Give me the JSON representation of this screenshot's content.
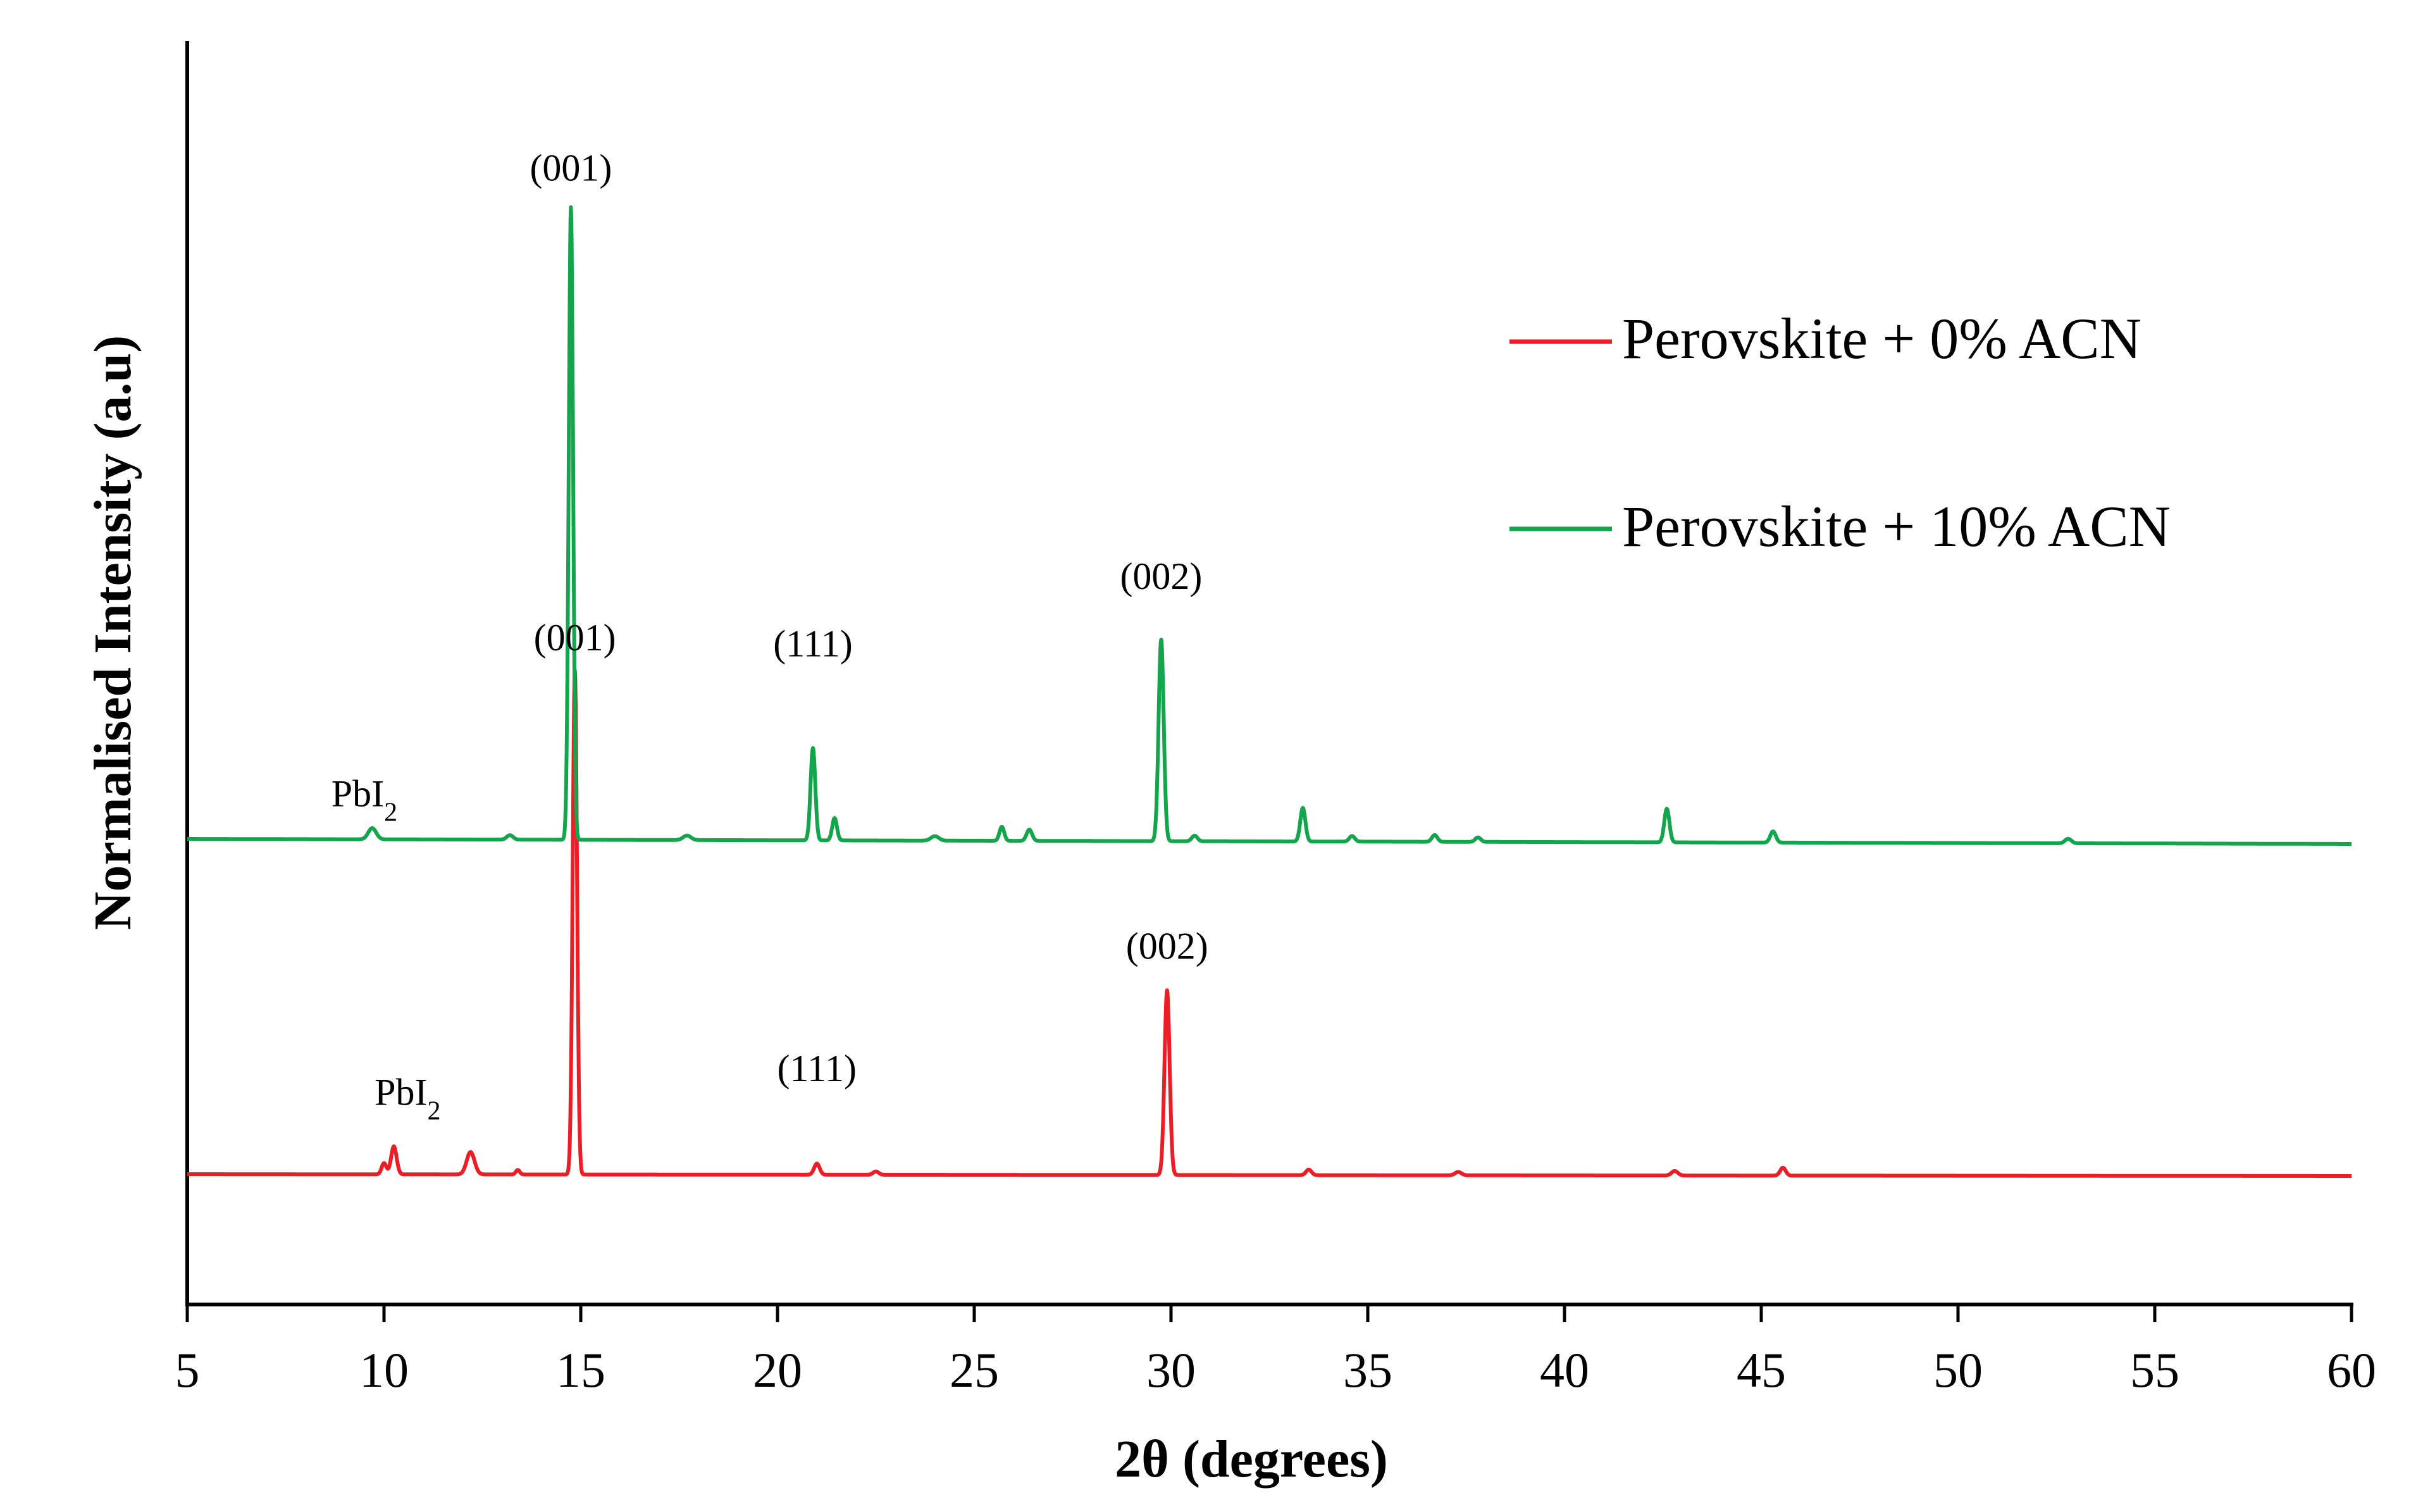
{
  "chart_data": {
    "type": "line",
    "title": "",
    "xlabel": "2θ (degrees)",
    "ylabel": "Normalised Intensity (a.u)",
    "xlim": [
      5,
      60
    ],
    "xticks": [
      "5",
      "10",
      "15",
      "20",
      "25",
      "30",
      "35",
      "40",
      "45",
      "50",
      "55",
      "60"
    ],
    "yticks": [],
    "grid": false,
    "legend_position": "top-right",
    "series": [
      {
        "name": "Perovskite + 0% ACN",
        "color": "#ee1c25",
        "baseline": 0.0,
        "peaks": [
          {
            "x": 10.0,
            "height": 0.02,
            "width": 0.06
          },
          {
            "x": 10.25,
            "height": 0.05,
            "width": 0.07
          },
          {
            "x": 12.2,
            "height": 0.04,
            "width": 0.1
          },
          {
            "x": 13.4,
            "height": 0.008,
            "width": 0.05
          },
          {
            "x": 14.85,
            "height": 0.9,
            "width": 0.055
          },
          {
            "x": 21.0,
            "height": 0.02,
            "width": 0.07
          },
          {
            "x": 22.5,
            "height": 0.006,
            "width": 0.07
          },
          {
            "x": 29.9,
            "height": 0.33,
            "width": 0.065
          },
          {
            "x": 33.5,
            "height": 0.01,
            "width": 0.07
          },
          {
            "x": 37.3,
            "height": 0.006,
            "width": 0.08
          },
          {
            "x": 42.8,
            "height": 0.008,
            "width": 0.08
          },
          {
            "x": 45.55,
            "height": 0.014,
            "width": 0.07
          }
        ],
        "annotations": [
          {
            "x": 10.6,
            "label": "PbI2"
          },
          {
            "x": 14.85,
            "label": "(001)"
          },
          {
            "x": 21.0,
            "label": "(111)"
          },
          {
            "x": 29.9,
            "label": "(002)"
          }
        ]
      },
      {
        "name": "Perovskite + 10% ACN",
        "color": "#12a54c",
        "baseline": 1.0,
        "peaks": [
          {
            "x": 9.7,
            "height": 0.02,
            "width": 0.1
          },
          {
            "x": 13.2,
            "height": 0.008,
            "width": 0.08
          },
          {
            "x": 14.75,
            "height": 1.13,
            "width": 0.055
          },
          {
            "x": 17.7,
            "height": 0.008,
            "width": 0.1
          },
          {
            "x": 20.9,
            "height": 0.165,
            "width": 0.06
          },
          {
            "x": 21.45,
            "height": 0.04,
            "width": 0.06
          },
          {
            "x": 24.0,
            "height": 0.008,
            "width": 0.1
          },
          {
            "x": 25.7,
            "height": 0.025,
            "width": 0.06
          },
          {
            "x": 26.4,
            "height": 0.02,
            "width": 0.07
          },
          {
            "x": 29.75,
            "height": 0.36,
            "width": 0.065
          },
          {
            "x": 30.6,
            "height": 0.01,
            "width": 0.07
          },
          {
            "x": 33.35,
            "height": 0.06,
            "width": 0.065
          },
          {
            "x": 34.6,
            "height": 0.01,
            "width": 0.07
          },
          {
            "x": 36.7,
            "height": 0.012,
            "width": 0.07
          },
          {
            "x": 37.8,
            "height": 0.008,
            "width": 0.07
          },
          {
            "x": 42.6,
            "height": 0.06,
            "width": 0.065
          },
          {
            "x": 45.3,
            "height": 0.02,
            "width": 0.07
          },
          {
            "x": 52.8,
            "height": 0.008,
            "width": 0.08
          }
        ],
        "annotations": [
          {
            "x": 9.5,
            "label": "PbI2"
          },
          {
            "x": 14.75,
            "label": "(001)"
          },
          {
            "x": 20.9,
            "label": "(111)"
          },
          {
            "x": 29.75,
            "label": "(002)"
          }
        ]
      }
    ]
  }
}
